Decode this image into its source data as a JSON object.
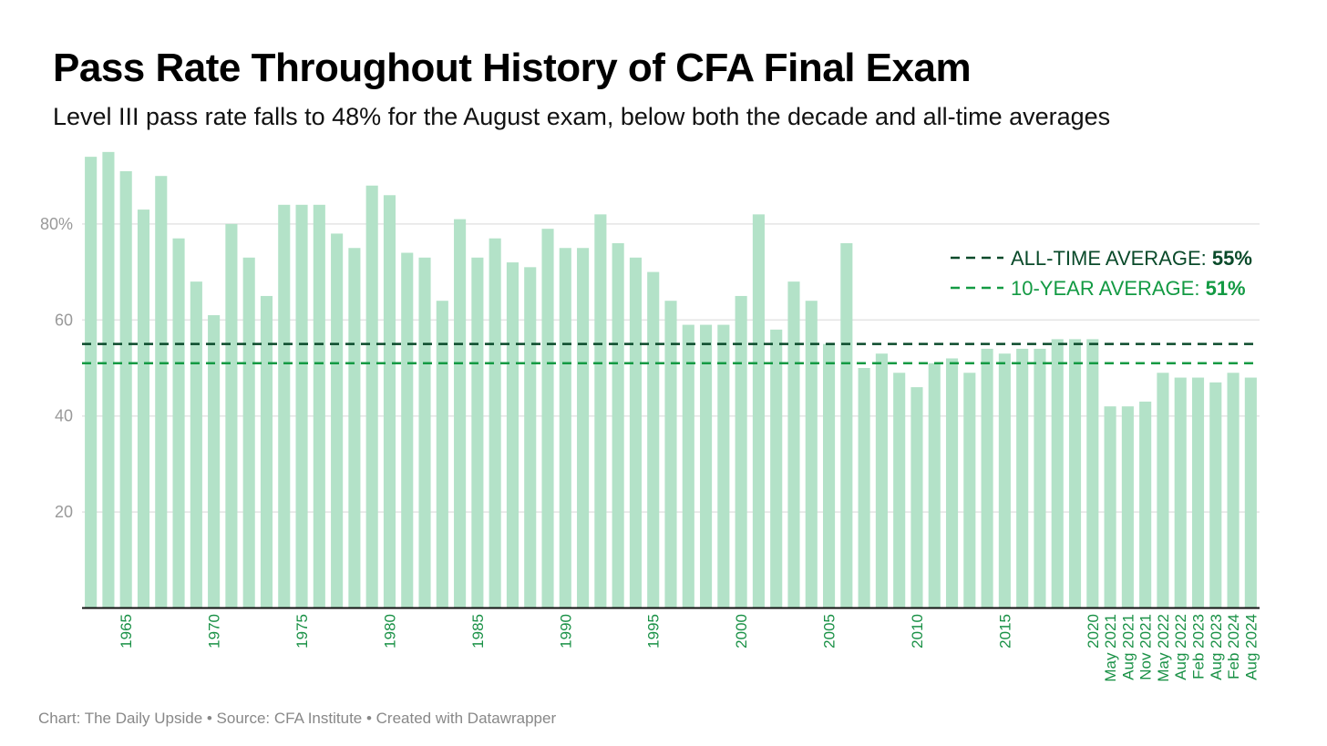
{
  "header": {
    "title": "Pass Rate Throughout History of CFA Final Exam",
    "subtitle": "Level III pass rate falls to 48% for the August exam, below both the decade and all-time averages"
  },
  "footer": {
    "text": "Chart: The Daily Upside • Source: CFA Institute • Created with Datawrapper"
  },
  "colors": {
    "bar": "#b3e2c8",
    "all_time_line": "#0a4a2a",
    "ten_year_line": "#139a43",
    "tick_label": "#1a9146",
    "axis": "#111111",
    "grid": "#e4e4e4"
  },
  "legend": [
    {
      "label": "ALL-TIME AVERAGE: ",
      "value": "55%",
      "color": "#0a4a2a"
    },
    {
      "label": "10-YEAR AVERAGE: ",
      "value": "51%",
      "color": "#139a43"
    }
  ],
  "chart_data": {
    "type": "bar",
    "title": "Pass Rate Throughout History of CFA Final Exam",
    "subtitle": "Level III pass rate falls to 48% for the August exam, below both the decade and all-time averages",
    "ylim": [
      0,
      95
    ],
    "yticks": [
      20,
      40,
      60,
      80
    ],
    "ytick_labels": [
      "20",
      "40",
      "60",
      "80%"
    ],
    "grid": true,
    "categories": [
      "1963",
      "1964",
      "1965",
      "1966",
      "1967",
      "1968",
      "1969",
      "1970",
      "1971",
      "1972",
      "1973",
      "1974",
      "1975",
      "1976",
      "1977",
      "1978",
      "1979",
      "1980",
      "1981",
      "1982",
      "1983",
      "1984",
      "1985",
      "1986",
      "1987",
      "1988",
      "1989",
      "1990",
      "1991",
      "1992",
      "1993",
      "1994",
      "1995",
      "1996",
      "1997",
      "1998",
      "1999",
      "2000",
      "2001",
      "2002",
      "2003",
      "2004",
      "2005",
      "2006",
      "2007",
      "2008",
      "2009",
      "2010",
      "2011",
      "2012",
      "2013",
      "2014",
      "2015",
      "2016",
      "2017",
      "2018",
      "2019",
      "2020",
      "May 2021",
      "Aug 2021",
      "Nov 2021",
      "May 2022",
      "Aug 2022",
      "Feb 2023",
      "Aug 2023",
      "Feb 2024",
      "Aug 2024"
    ],
    "values": [
      94,
      95,
      91,
      83,
      90,
      77,
      68,
      61,
      80,
      73,
      65,
      84,
      84,
      84,
      78,
      75,
      88,
      86,
      74,
      73,
      64,
      81,
      73,
      77,
      72,
      71,
      79,
      75,
      75,
      82,
      76,
      73,
      70,
      64,
      59,
      59,
      59,
      65,
      82,
      58,
      68,
      64,
      55,
      76,
      50,
      53,
      49,
      46,
      51,
      52,
      49,
      54,
      53,
      54,
      54,
      56,
      56,
      56,
      42,
      42,
      43,
      49,
      48,
      48,
      47,
      49,
      48
    ],
    "tick_labels": [
      "1965",
      "1970",
      "1975",
      "1980",
      "1985",
      "1990",
      "1995",
      "2000",
      "2005",
      "2010",
      "2015",
      "2020",
      "May 2021",
      "Aug 2021",
      "Nov 2021",
      "May 2022",
      "Aug 2022",
      "Feb 2023",
      "Aug 2023",
      "Feb 2024",
      "Aug 2024"
    ],
    "reference_lines": [
      {
        "name": "All-time average",
        "value": 55
      },
      {
        "name": "10-year average",
        "value": 51
      }
    ],
    "legend_position": "top-right"
  }
}
